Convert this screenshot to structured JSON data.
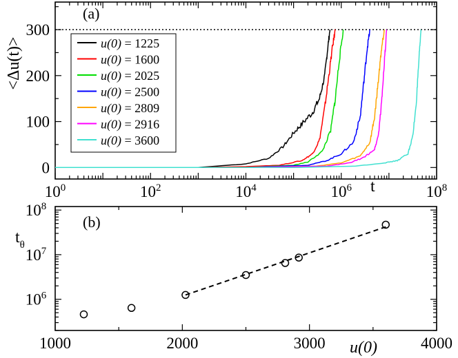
{
  "chart_data": [
    {
      "type": "line",
      "panel_label": "(a)",
      "xlabel": "t",
      "ylabel": "<Δu(t)>",
      "xscale": "log",
      "xlim": [
        1,
        100000000
      ],
      "ylim": [
        -25,
        360
      ],
      "xticks": [
        {
          "value": 1,
          "base": "10",
          "exp": "0"
        },
        {
          "value": 100,
          "base": "10",
          "exp": "2"
        },
        {
          "value": 10000,
          "base": "10",
          "exp": "4"
        },
        {
          "value": 1000000,
          "base": "10",
          "exp": "6"
        },
        {
          "value": 100000000,
          "base": "10",
          "exp": "8"
        }
      ],
      "yticks": [
        {
          "value": 0,
          "label": "0"
        },
        {
          "value": 100,
          "label": "100"
        },
        {
          "value": 200,
          "label": "200"
        },
        {
          "value": 300,
          "label": "300"
        }
      ],
      "reference_line": {
        "y": 300,
        "style": "dotted"
      },
      "legend_position": "left",
      "series": [
        {
          "name": "u(0) = 1225",
          "name_var": "u(0)",
          "name_value": "= 1225",
          "color": "#000000",
          "points": [
            [
              1,
              0
            ],
            [
              1000,
              0
            ],
            [
              10000,
              8
            ],
            [
              30000,
              20
            ],
            [
              60000,
              45
            ],
            [
              100000,
              75
            ],
            [
              150000,
              95
            ],
            [
              250000,
              120
            ],
            [
              350000,
              150
            ],
            [
              450000,
              200
            ],
            [
              520000,
              260
            ],
            [
              580000,
              300
            ]
          ]
        },
        {
          "name": "u(0) = 1600",
          "name_var": "u(0)",
          "name_value": "= 1600",
          "color": "#ff0000",
          "points": [
            [
              1,
              0
            ],
            [
              1000,
              0
            ],
            [
              10000,
              2
            ],
            [
              50000,
              5
            ],
            [
              150000,
              15
            ],
            [
              250000,
              30
            ],
            [
              350000,
              60
            ],
            [
              450000,
              130
            ],
            [
              550000,
              200
            ],
            [
              650000,
              260
            ],
            [
              750000,
              300
            ]
          ]
        },
        {
          "name": "u(0) = 2025",
          "name_var": "u(0)",
          "name_value": "= 2025",
          "color": "#00dd00",
          "points": [
            [
              1,
              0
            ],
            [
              10000,
              0
            ],
            [
              100000,
              5
            ],
            [
              200000,
              12
            ],
            [
              400000,
              35
            ],
            [
              600000,
              80
            ],
            [
              750000,
              150
            ],
            [
              900000,
              230
            ],
            [
              1100000,
              300
            ]
          ]
        },
        {
          "name": "u(0) = 2500",
          "name_var": "u(0)",
          "name_value": "= 2500",
          "color": "#0000ff",
          "points": [
            [
              1,
              0
            ],
            [
              10000,
              0
            ],
            [
              200000,
              5
            ],
            [
              500000,
              15
            ],
            [
              1000000,
              30
            ],
            [
              1800000,
              55
            ],
            [
              2500000,
              110
            ],
            [
              3000000,
              190
            ],
            [
              3500000,
              260
            ],
            [
              4000000,
              300
            ]
          ]
        },
        {
          "name": "u(0) = 2809",
          "name_var": "u(0)",
          "name_value": "= 2809",
          "color": "#ffa500",
          "points": [
            [
              1,
              0
            ],
            [
              10000,
              0
            ],
            [
              300000,
              3
            ],
            [
              1000000,
              10
            ],
            [
              2500000,
              25
            ],
            [
              4000000,
              55
            ],
            [
              5000000,
              110
            ],
            [
              6000000,
              190
            ],
            [
              7000000,
              260
            ],
            [
              8000000,
              300
            ]
          ]
        },
        {
          "name": "u(0) = 2916",
          "name_var": "u(0)",
          "name_value": "= 2916",
          "color": "#ff00ff",
          "points": [
            [
              1,
              0
            ],
            [
              10000,
              0
            ],
            [
              500000,
              3
            ],
            [
              1500000,
              10
            ],
            [
              3000000,
              22
            ],
            [
              5000000,
              40
            ],
            [
              6000000,
              70
            ],
            [
              7000000,
              140
            ],
            [
              8000000,
              230
            ],
            [
              9000000,
              300
            ]
          ]
        },
        {
          "name": "u(0) = 3600",
          "name_var": "u(0)",
          "name_value": "= 3600",
          "color": "#40e0d0",
          "points": [
            [
              1,
              0
            ],
            [
              100000,
              0
            ],
            [
              2000000,
              3
            ],
            [
              8000000,
              10
            ],
            [
              15000000,
              15
            ],
            [
              25000000,
              30
            ],
            [
              32000000,
              70
            ],
            [
              38000000,
              150
            ],
            [
              43000000,
              240
            ],
            [
              47000000,
              300
            ]
          ]
        }
      ]
    },
    {
      "type": "scatter",
      "panel_label": "(b)",
      "xlabel": "u(0)",
      "ylabel": "t",
      "ylabel_sub": "θ",
      "yscale": "log",
      "xlim": [
        1000,
        4000
      ],
      "ylim": [
        200000,
        120000000
      ],
      "xticks": [
        {
          "value": 1000,
          "label": "1000"
        },
        {
          "value": 2000,
          "label": "2000"
        },
        {
          "value": 3000,
          "label": "3000"
        },
        {
          "value": 4000,
          "label": "4000"
        }
      ],
      "yticks": [
        {
          "value": 1000000,
          "base": "10",
          "exp": "6"
        },
        {
          "value": 10000000,
          "base": "10",
          "exp": "7"
        },
        {
          "value": 100000000,
          "base": "10",
          "exp": "8"
        }
      ],
      "points": [
        {
          "x": 1225,
          "y": 460000
        },
        {
          "x": 1600,
          "y": 640000
        },
        {
          "x": 2025,
          "y": 1250000
        },
        {
          "x": 2500,
          "y": 3500000
        },
        {
          "x": 2809,
          "y": 6500000
        },
        {
          "x": 2916,
          "y": 8600000
        },
        {
          "x": 3600,
          "y": 47000000
        }
      ],
      "fit_line": {
        "x": [
          2025,
          3600
        ],
        "y": [
          1250000,
          42000000
        ],
        "style": "dashed"
      }
    }
  ]
}
